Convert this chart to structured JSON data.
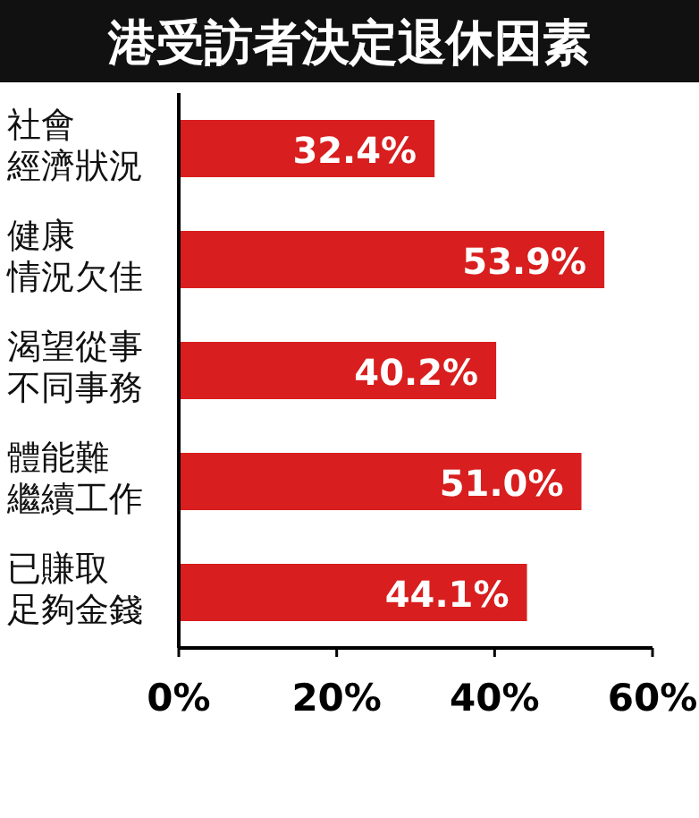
{
  "chart_data": {
    "type": "bar",
    "orientation": "horizontal",
    "title": "港受訪者決定退休因素",
    "categories": [
      "社會經濟狀況",
      "健康情況欠佳",
      "渴望從事不同事務",
      "體能難繼續工作",
      "已賺取足夠金錢"
    ],
    "values": [
      32.4,
      53.9,
      40.2,
      51.0,
      44.1
    ],
    "value_labels": [
      "32.4%",
      "53.9%",
      "40.2%",
      "51.0%",
      "44.1%"
    ],
    "color": "#d81e1e",
    "xlim": [
      0,
      60
    ],
    "xticks": [
      {
        "value": 0,
        "label": "0%"
      },
      {
        "value": 20,
        "label": "20%"
      },
      {
        "value": 40,
        "label": "40%"
      },
      {
        "value": 60,
        "label": "60%"
      }
    ]
  }
}
